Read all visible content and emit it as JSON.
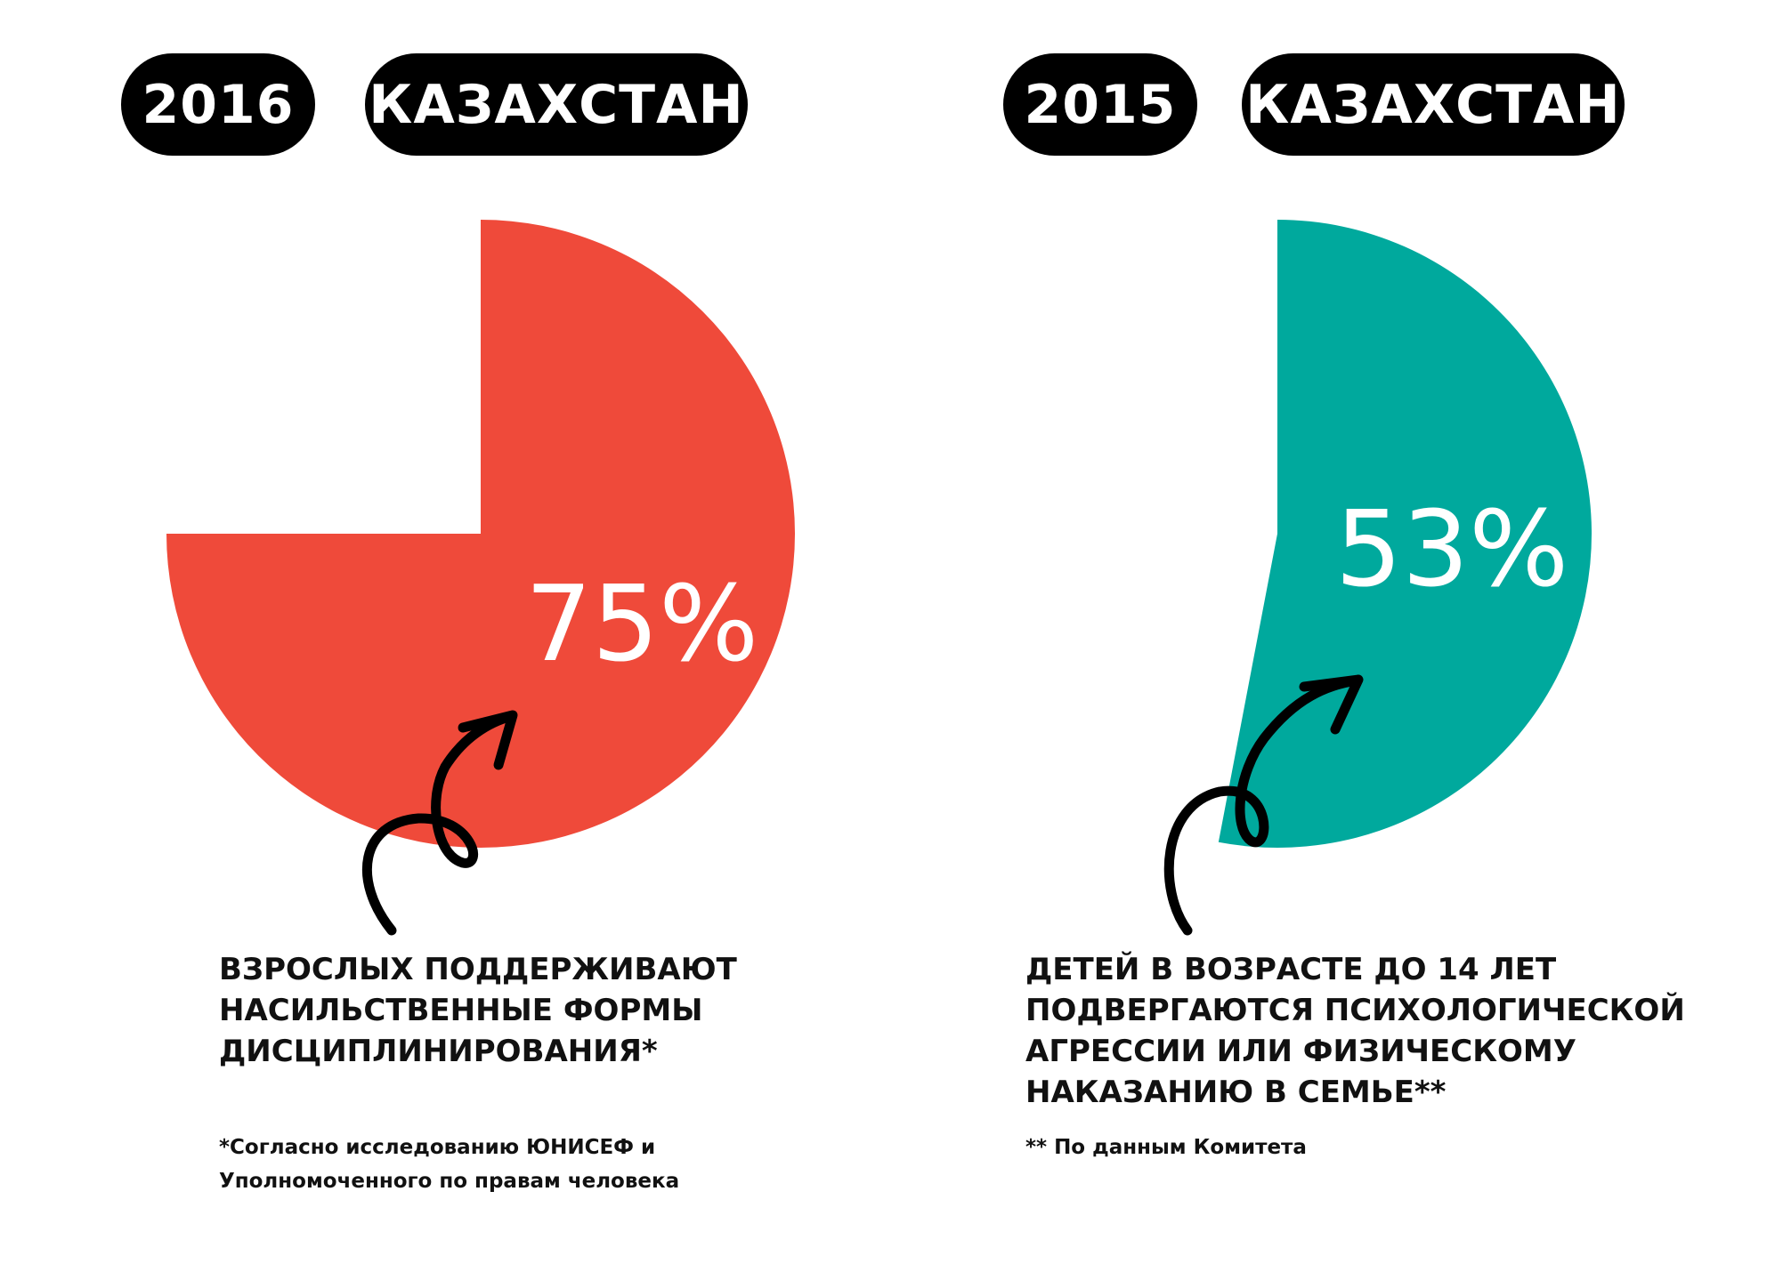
{
  "chart_data": [
    {
      "type": "pie",
      "year": "2016",
      "region": "КАЗАХСТАН",
      "value": 75,
      "value_label": "75%",
      "color": "#EF4A3A",
      "caption": "ВЗРОСЛЫХ ПОДДЕРЖИВАЮТ\nНАСИЛЬСТВЕННЫЕ ФОРМЫ\nДИСЦИПЛИНИРОВАНИЯ*",
      "footnote": "*Согласно исследованию ЮНИСЕФ и\n  Уполномоченного по правам человека"
    },
    {
      "type": "pie",
      "year": "2015",
      "region": "КАЗАХСТАН",
      "value": 53,
      "value_label": "53%",
      "color": "#00A99D",
      "caption": "ДЕТЕЙ В ВОЗРАСТЕ ДО 14 ЛЕТ\nПОДВЕРГАЮТСЯ ПСИХОЛОГИЧЕСКОЙ\nАГРЕССИИ ИЛИ ФИЗИЧЕСКОМУ\nНАКАЗАНИЮ В СЕМЬЕ**",
      "footnote": "** По данным Комитета"
    }
  ]
}
